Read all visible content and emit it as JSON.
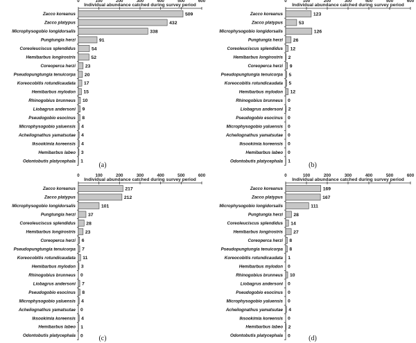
{
  "figure": {
    "x_title": "Individual abundance catched during survey period",
    "x_ticks": [
      "0",
      "100",
      "200",
      "300",
      "400",
      "500",
      "600"
    ],
    "colors": {
      "bar_fill": "#c6c6c6",
      "bar_stroke": "#3a3a3a"
    }
  },
  "chart_data": [
    {
      "type": "bar",
      "orientation": "horizontal",
      "panel_label": "(a)",
      "xlabel": "Individual abundance catched during survey period",
      "xlim": [
        0,
        600
      ],
      "categories": [
        "Zacco koreanus",
        "Zacco platypus",
        "Microphysogobio longidorsalis",
        "Pungtungia herzi",
        "Coreoleuciscus splendidus",
        "Hemibarbus longirostris",
        "Coreoperca herzi",
        "Pseudopungtungia tenuicorpa",
        "Koreocobitis rotundicaudata",
        "Hemibarbus mylodon",
        "Rhinogobius brunneus",
        "Liobagrus andersoni",
        "Pseudogobio esocinus",
        "Microphysogobio yaluensis",
        "Acheilognathus yamatsutae",
        "Iksookimia koreensis",
        "Hemibarbus labeo",
        "Odontobutis platycephala"
      ],
      "values": [
        509,
        432,
        338,
        91,
        54,
        52,
        23,
        20,
        17,
        15,
        10,
        9,
        8,
        4,
        4,
        4,
        3,
        1
      ]
    },
    {
      "type": "bar",
      "orientation": "horizontal",
      "panel_label": "(b)",
      "xlabel": "Individual abundance catched during survey period",
      "xlim": [
        0,
        600
      ],
      "categories": [
        "Zacco koreanus",
        "Zacco platypus",
        "Microphysogobio longidorsalis",
        "Pungtungia herzi",
        "Coreoleuciscus splendidus",
        "Hemibarbus longirostris",
        "Coreoperca herzi",
        "Pseudopungtungia tenuicorpa",
        "Koreocobitis rotundicaudata",
        "Hemibarbus mylodon",
        "Rhinogobius brunneus",
        "Liobagrus andersoni",
        "Pseudogobio esocinus",
        "Microphysogobio yaluensis",
        "Acheilognathus yamatsutae",
        "Iksookimia koreensis",
        "Hemibarbus labeo",
        "Odontobutis platycephala"
      ],
      "values": [
        123,
        53,
        126,
        26,
        12,
        2,
        9,
        5,
        5,
        12,
        0,
        2,
        0,
        0,
        0,
        0,
        0,
        1
      ]
    },
    {
      "type": "bar",
      "orientation": "horizontal",
      "panel_label": "(c)",
      "xlabel": "Individual abundance catched during survey period",
      "xlim": [
        0,
        600
      ],
      "categories": [
        "Zacco koreanus",
        "Zacco platypus",
        "Microphysogobio longidorsalis",
        "Pungtungia herzi",
        "Coreoleuciscus splendidus",
        "Hemibarbus longirostris",
        "Coreoperca herzi",
        "Pseudopungtungia tenuicorpa",
        "Koreocobitis rotundicaudata",
        "Hemibarbus mylodon",
        "Rhinogobius brunneus",
        "Liobagrus andersoni",
        "Pseudogobio esocinus",
        "Microphysogobio yaluensis",
        "Acheilognathus yamatsutae",
        "Iksookimia koreensis",
        "Hemibarbus labeo",
        "Odontobutis platycephala"
      ],
      "values": [
        217,
        212,
        101,
        37,
        28,
        23,
        6,
        7,
        11,
        3,
        0,
        7,
        8,
        4,
        0,
        4,
        1,
        0
      ]
    },
    {
      "type": "bar",
      "orientation": "horizontal",
      "panel_label": "(d)",
      "xlabel": "Individual abundance catched during survey period",
      "xlim": [
        0,
        600
      ],
      "categories": [
        "Zacco koreanus",
        "Zacco platypus",
        "Microphysogobio longidorsalis",
        "Pungtungia herzi",
        "Coreoleuciscus splendidus",
        "Hemibarbus longirostris",
        "Coreoperca herzi",
        "Pseudopungtungia tenuicorpa",
        "Koreocobitis rotundicaudata",
        "Hemibarbus mylodon",
        "Rhinogobius brunneus",
        "Liobagrus andersoni",
        "Pseudogobio esocinus",
        "Microphysogobio yaluensis",
        "Acheilognathus yamatsutae",
        "Iksookimia koreensis",
        "Hemibarbus labeo",
        "Odontobutis platycephala"
      ],
      "values": [
        169,
        167,
        111,
        28,
        14,
        27,
        8,
        8,
        1,
        0,
        10,
        0,
        0,
        0,
        4,
        0,
        2,
        0
      ]
    }
  ]
}
